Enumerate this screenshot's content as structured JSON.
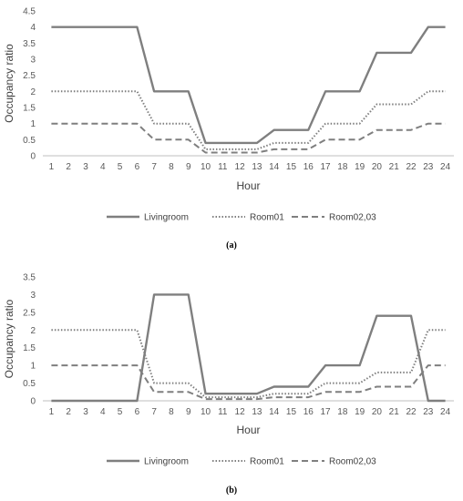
{
  "chart_data": [
    {
      "type": "line",
      "panel_label": "(a)",
      "xlabel": "Hour",
      "ylabel": "Occupancy ratio",
      "x": [
        1,
        2,
        3,
        4,
        5,
        6,
        7,
        8,
        9,
        10,
        11,
        12,
        13,
        14,
        15,
        16,
        17,
        18,
        19,
        20,
        21,
        22,
        23,
        24
      ],
      "ylim": [
        0,
        4.5
      ],
      "yticks": [
        "0",
        "0.5",
        "1",
        "1.5",
        "2",
        "2.5",
        "3",
        "3.5",
        "4",
        "4.5"
      ],
      "legend_position": "bottom",
      "grid": false,
      "series": [
        {
          "name": "Livingroom",
          "color": "#7f7f7f",
          "style": "solid",
          "values": [
            4,
            4,
            4,
            4,
            4,
            4,
            2,
            2,
            2,
            0.4,
            0.4,
            0.4,
            0.4,
            0.8,
            0.8,
            0.8,
            2,
            2,
            2,
            3.2,
            3.2,
            3.2,
            4,
            4
          ]
        },
        {
          "name": "Room01",
          "color": "#7f7f7f",
          "style": "dotted",
          "values": [
            2,
            2,
            2,
            2,
            2,
            2,
            1,
            1,
            1,
            0.2,
            0.2,
            0.2,
            0.2,
            0.4,
            0.4,
            0.4,
            1,
            1,
            1,
            1.6,
            1.6,
            1.6,
            2,
            2
          ]
        },
        {
          "name": "Room02,03",
          "color": "#7f7f7f",
          "style": "dashed",
          "values": [
            1,
            1,
            1,
            1,
            1,
            1,
            0.5,
            0.5,
            0.5,
            0.1,
            0.1,
            0.1,
            0.1,
            0.2,
            0.2,
            0.2,
            0.5,
            0.5,
            0.5,
            0.8,
            0.8,
            0.8,
            1,
            1
          ]
        }
      ]
    },
    {
      "type": "line",
      "panel_label": "(b)",
      "xlabel": "Hour",
      "ylabel": "Occupancy ratio",
      "x": [
        1,
        2,
        3,
        4,
        5,
        6,
        7,
        8,
        9,
        10,
        11,
        12,
        13,
        14,
        15,
        16,
        17,
        18,
        19,
        20,
        21,
        22,
        23,
        24
      ],
      "ylim": [
        0,
        3.5
      ],
      "yticks": [
        "0",
        "0.5",
        "1",
        "1.5",
        "2",
        "2.5",
        "3",
        "3.5"
      ],
      "legend_position": "bottom",
      "grid": false,
      "series": [
        {
          "name": "Livingroom",
          "color": "#7f7f7f",
          "style": "solid",
          "values": [
            0,
            0,
            0,
            0,
            0,
            0,
            3,
            3,
            3,
            0.2,
            0.2,
            0.2,
            0.2,
            0.4,
            0.4,
            0.4,
            1,
            1,
            1,
            2.4,
            2.4,
            2.4,
            0,
            0
          ]
        },
        {
          "name": "Room01",
          "color": "#7f7f7f",
          "style": "dotted",
          "values": [
            2,
            2,
            2,
            2,
            2,
            2,
            0.5,
            0.5,
            0.5,
            0.1,
            0.1,
            0.1,
            0.1,
            0.2,
            0.2,
            0.2,
            0.5,
            0.5,
            0.5,
            0.8,
            0.8,
            0.8,
            2,
            2
          ]
        },
        {
          "name": "Room02,03",
          "color": "#7f7f7f",
          "style": "dashed",
          "values": [
            1,
            1,
            1,
            1,
            1,
            1,
            0.25,
            0.25,
            0.25,
            0.05,
            0.05,
            0.05,
            0.05,
            0.1,
            0.1,
            0.1,
            0.25,
            0.25,
            0.25,
            0.4,
            0.4,
            0.4,
            1,
            1
          ]
        }
      ]
    }
  ]
}
